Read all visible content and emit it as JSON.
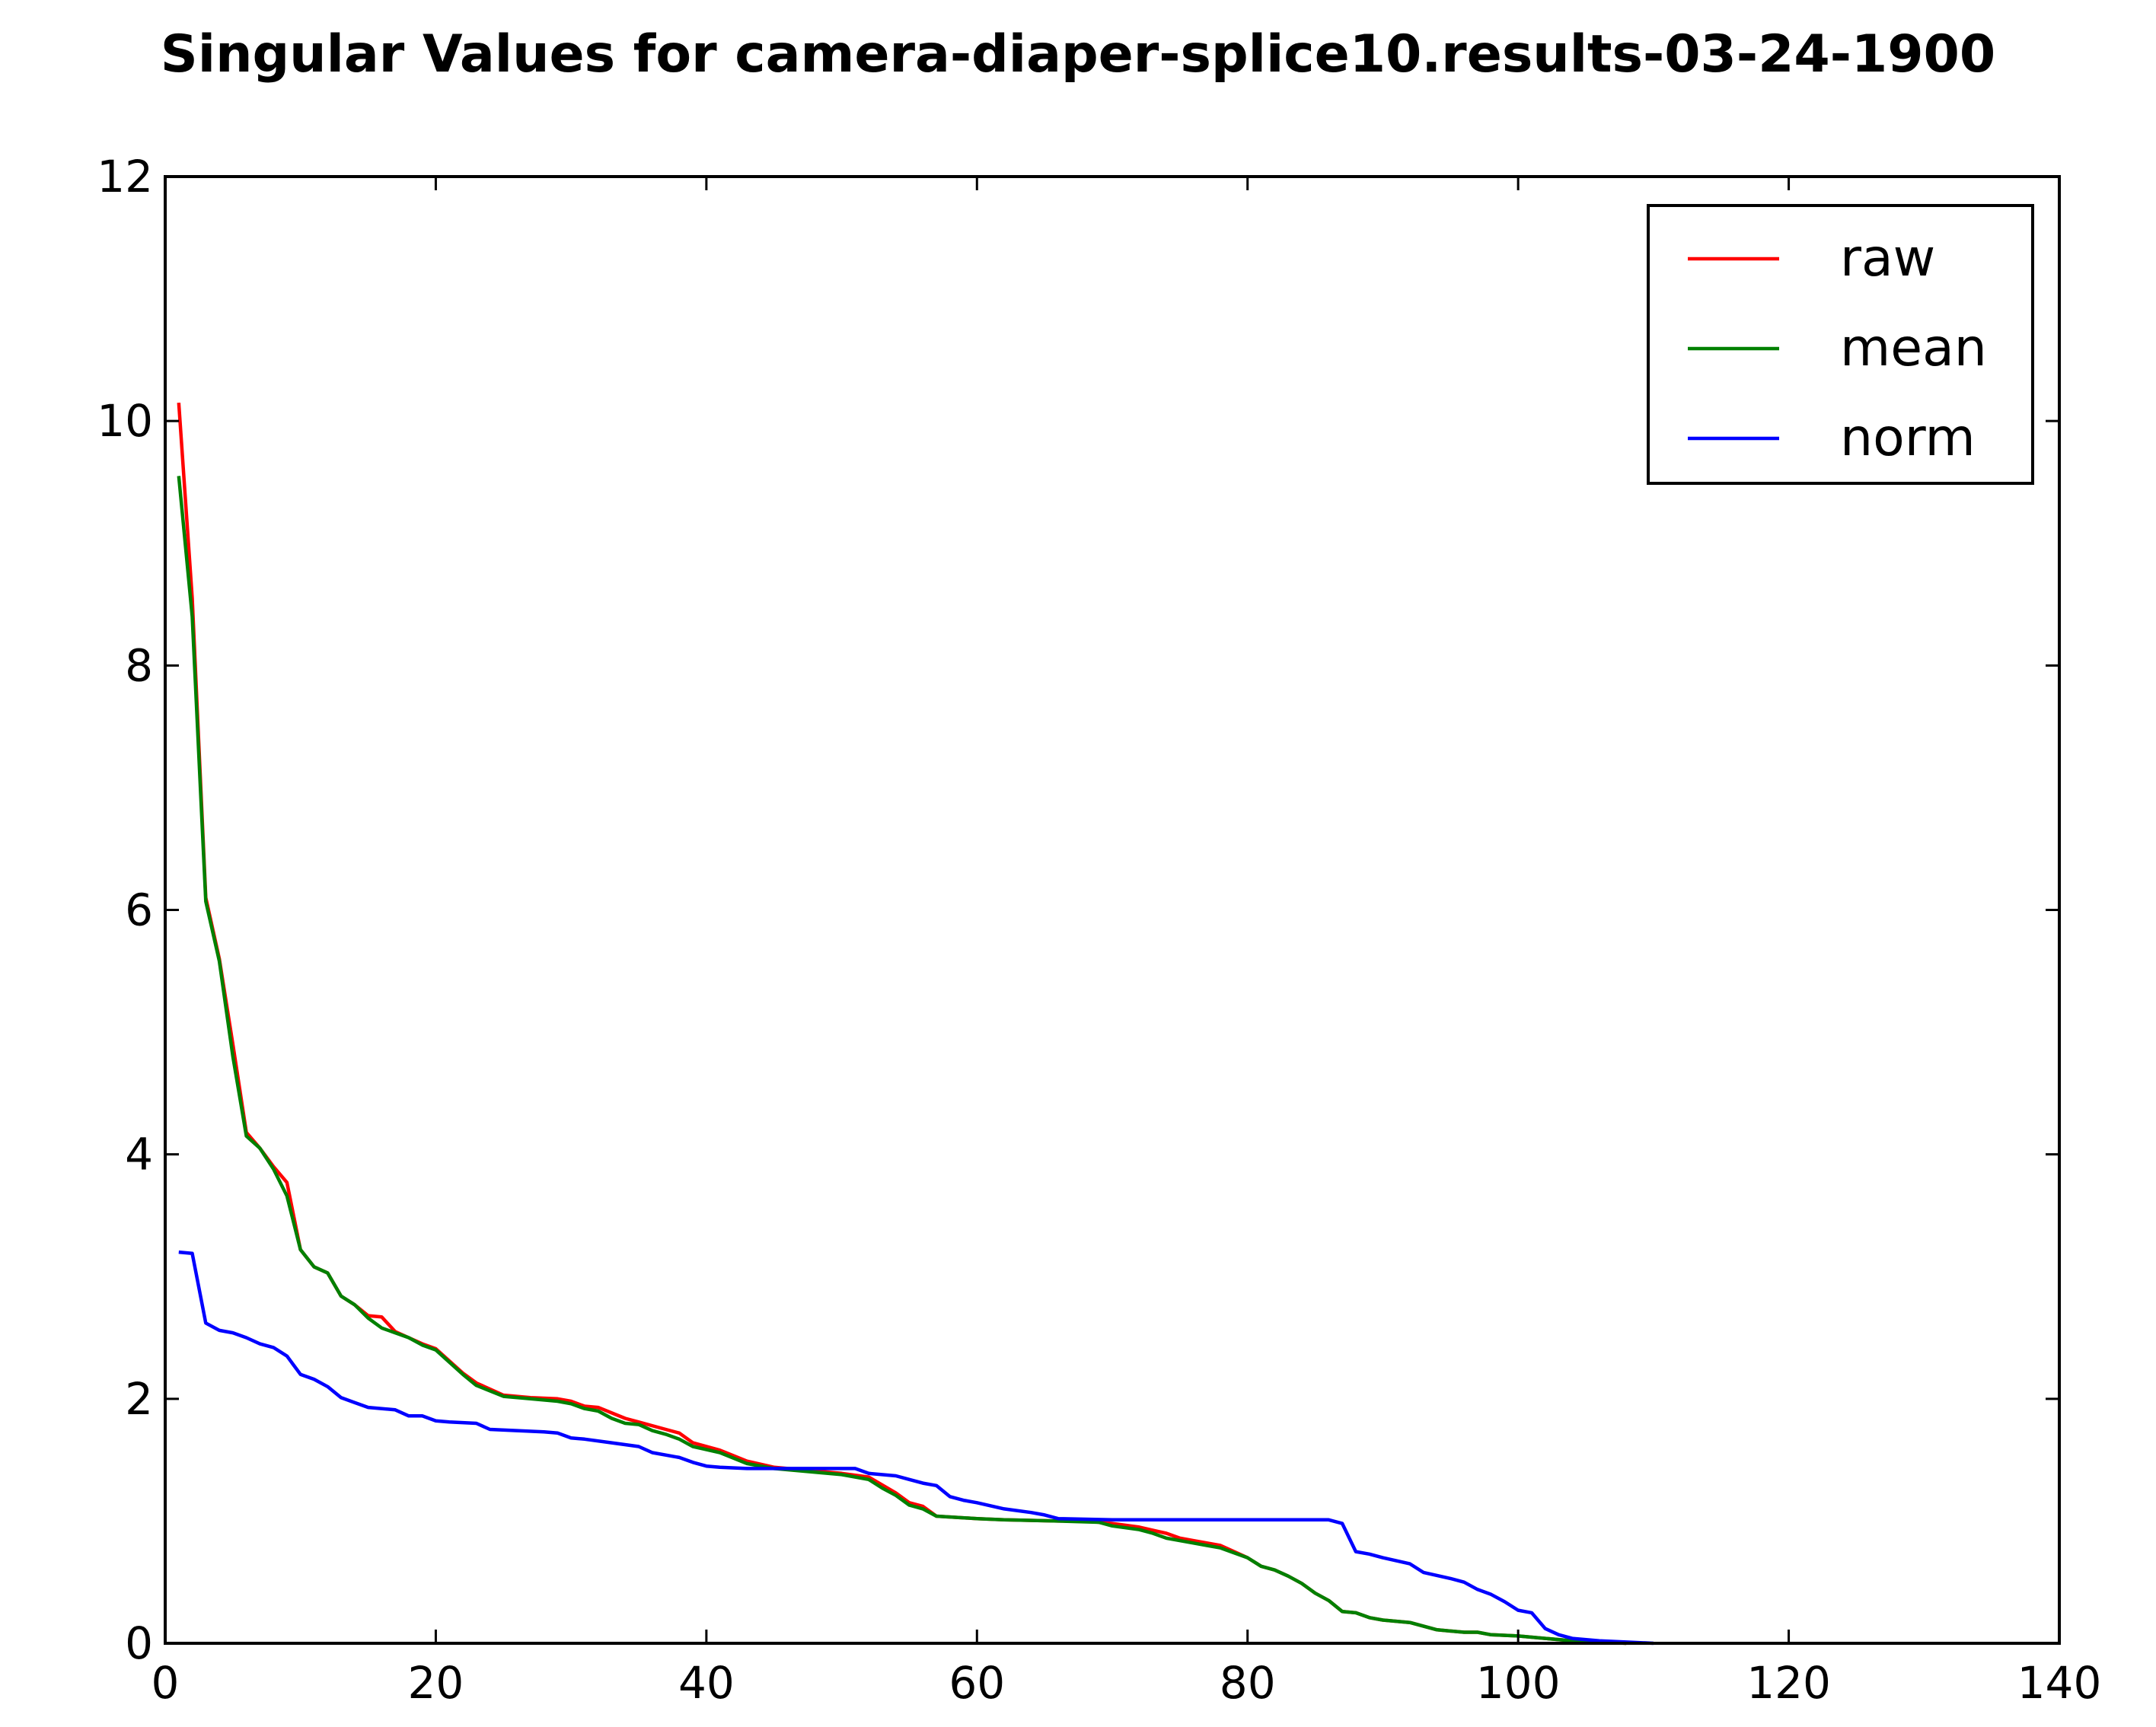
{
  "chart_data": {
    "type": "line",
    "title": "Singular Values for camera-diaper-splice10.results-03-24-1900",
    "xlabel": "",
    "ylabel": "",
    "xlim": [
      0,
      140
    ],
    "ylim": [
      0,
      12
    ],
    "xticks": [
      0,
      20,
      40,
      60,
      80,
      100,
      120,
      140
    ],
    "yticks": [
      0,
      2,
      4,
      6,
      8,
      10,
      12
    ],
    "grid": false,
    "legend": {
      "position": "top-right",
      "entries": [
        "raw",
        "mean",
        "norm"
      ]
    },
    "series": [
      {
        "name": "raw",
        "color": "#ff0000",
        "points": [
          [
            1,
            10.15
          ],
          [
            2,
            8.55
          ],
          [
            3,
            6.1
          ],
          [
            4,
            5.6
          ],
          [
            5,
            4.9
          ],
          [
            6,
            4.18
          ],
          [
            7,
            4.05
          ],
          [
            8,
            3.9
          ],
          [
            9,
            3.77
          ],
          [
            10,
            3.22
          ],
          [
            11,
            3.08
          ],
          [
            12,
            3.03
          ],
          [
            13,
            2.84
          ],
          [
            14,
            2.77
          ],
          [
            15,
            2.68
          ],
          [
            16,
            2.67
          ],
          [
            17,
            2.55
          ],
          [
            18,
            2.5
          ],
          [
            19,
            2.45
          ],
          [
            20,
            2.41
          ],
          [
            22,
            2.21
          ],
          [
            23,
            2.13
          ],
          [
            25,
            2.03
          ],
          [
            27,
            2.01
          ],
          [
            29,
            2.0
          ],
          [
            30,
            1.98
          ],
          [
            31,
            1.94
          ],
          [
            32,
            1.93
          ],
          [
            34,
            1.84
          ],
          [
            35,
            1.81
          ],
          [
            37,
            1.75
          ],
          [
            38,
            1.72
          ],
          [
            39,
            1.64
          ],
          [
            41,
            1.58
          ],
          [
            43,
            1.49
          ],
          [
            45,
            1.44
          ],
          [
            50,
            1.39
          ],
          [
            52,
            1.36
          ],
          [
            54,
            1.23
          ],
          [
            55,
            1.15
          ],
          [
            56,
            1.12
          ],
          [
            57,
            1.04
          ],
          [
            60,
            1.02
          ],
          [
            62,
            1.01
          ],
          [
            66,
            1.0
          ],
          [
            68,
            1.0
          ],
          [
            70,
            0.98
          ],
          [
            72,
            0.95
          ],
          [
            74,
            0.9
          ],
          [
            75,
            0.86
          ],
          [
            76,
            0.84
          ],
          [
            78,
            0.8
          ],
          [
            80,
            0.7
          ],
          [
            81,
            0.63
          ],
          [
            82,
            0.6
          ],
          [
            83,
            0.55
          ],
          [
            84,
            0.49
          ],
          [
            85,
            0.41
          ],
          [
            86,
            0.35
          ],
          [
            87,
            0.26
          ],
          [
            88,
            0.25
          ],
          [
            89,
            0.21
          ],
          [
            90,
            0.19
          ],
          [
            92,
            0.17
          ],
          [
            94,
            0.11
          ],
          [
            96,
            0.09
          ],
          [
            97,
            0.09
          ],
          [
            98,
            0.07
          ],
          [
            100,
            0.06
          ],
          [
            102,
            0.04
          ],
          [
            104,
            0.02
          ],
          [
            106,
            0.01
          ],
          [
            108,
            0.0
          ]
        ]
      },
      {
        "name": "mean",
        "color": "#008000",
        "points": [
          [
            1,
            9.55
          ],
          [
            2,
            8.4
          ],
          [
            3,
            6.07
          ],
          [
            4,
            5.58
          ],
          [
            5,
            4.8
          ],
          [
            6,
            4.15
          ],
          [
            7,
            4.05
          ],
          [
            8,
            3.88
          ],
          [
            9,
            3.66
          ],
          [
            10,
            3.22
          ],
          [
            11,
            3.08
          ],
          [
            12,
            3.03
          ],
          [
            13,
            2.84
          ],
          [
            14,
            2.77
          ],
          [
            15,
            2.66
          ],
          [
            16,
            2.58
          ],
          [
            17,
            2.54
          ],
          [
            18,
            2.5
          ],
          [
            19,
            2.44
          ],
          [
            20,
            2.4
          ],
          [
            22,
            2.2
          ],
          [
            23,
            2.11
          ],
          [
            25,
            2.02
          ],
          [
            27,
            2.0
          ],
          [
            29,
            1.98
          ],
          [
            30,
            1.96
          ],
          [
            31,
            1.92
          ],
          [
            32,
            1.9
          ],
          [
            33,
            1.84
          ],
          [
            34,
            1.8
          ],
          [
            35,
            1.79
          ],
          [
            36,
            1.74
          ],
          [
            37,
            1.71
          ],
          [
            38,
            1.67
          ],
          [
            39,
            1.61
          ],
          [
            41,
            1.56
          ],
          [
            43,
            1.47
          ],
          [
            45,
            1.43
          ],
          [
            50,
            1.38
          ],
          [
            52,
            1.34
          ],
          [
            53,
            1.27
          ],
          [
            54,
            1.21
          ],
          [
            55,
            1.13
          ],
          [
            56,
            1.1
          ],
          [
            57,
            1.04
          ],
          [
            60,
            1.02
          ],
          [
            62,
            1.01
          ],
          [
            66,
            1.0
          ],
          [
            69,
            0.99
          ],
          [
            70,
            0.96
          ],
          [
            72,
            0.93
          ],
          [
            73,
            0.9
          ],
          [
            74,
            0.86
          ],
          [
            76,
            0.82
          ],
          [
            77,
            0.8
          ],
          [
            78,
            0.78
          ],
          [
            80,
            0.7
          ],
          [
            81,
            0.63
          ],
          [
            82,
            0.6
          ],
          [
            83,
            0.55
          ],
          [
            84,
            0.49
          ],
          [
            85,
            0.41
          ],
          [
            86,
            0.35
          ],
          [
            87,
            0.26
          ],
          [
            88,
            0.25
          ],
          [
            89,
            0.21
          ],
          [
            90,
            0.19
          ],
          [
            92,
            0.17
          ],
          [
            94,
            0.11
          ],
          [
            96,
            0.09
          ],
          [
            97,
            0.09
          ],
          [
            98,
            0.07
          ],
          [
            100,
            0.06
          ],
          [
            102,
            0.04
          ],
          [
            104,
            0.02
          ],
          [
            106,
            0.01
          ],
          [
            108,
            0.0
          ]
        ]
      },
      {
        "name": "norm",
        "color": "#0000ff",
        "points": [
          [
            1,
            3.2
          ],
          [
            2,
            3.19
          ],
          [
            3,
            2.62
          ],
          [
            4,
            2.56
          ],
          [
            5,
            2.54
          ],
          [
            6,
            2.5
          ],
          [
            7,
            2.45
          ],
          [
            8,
            2.42
          ],
          [
            9,
            2.35
          ],
          [
            10,
            2.2
          ],
          [
            11,
            2.16
          ],
          [
            12,
            2.1
          ],
          [
            13,
            2.01
          ],
          [
            14,
            1.97
          ],
          [
            15,
            1.93
          ],
          [
            17,
            1.91
          ],
          [
            18,
            1.86
          ],
          [
            19,
            1.86
          ],
          [
            20,
            1.82
          ],
          [
            21,
            1.81
          ],
          [
            23,
            1.8
          ],
          [
            24,
            1.75
          ],
          [
            26,
            1.74
          ],
          [
            28,
            1.73
          ],
          [
            29,
            1.72
          ],
          [
            30,
            1.68
          ],
          [
            31,
            1.67
          ],
          [
            33,
            1.64
          ],
          [
            35,
            1.61
          ],
          [
            36,
            1.56
          ],
          [
            38,
            1.52
          ],
          [
            39,
            1.48
          ],
          [
            40,
            1.45
          ],
          [
            41,
            1.44
          ],
          [
            43,
            1.43
          ],
          [
            45,
            1.43
          ],
          [
            50,
            1.43
          ],
          [
            51,
            1.43
          ],
          [
            52,
            1.39
          ],
          [
            54,
            1.37
          ],
          [
            55,
            1.34
          ],
          [
            56,
            1.31
          ],
          [
            57,
            1.29
          ],
          [
            58,
            1.2
          ],
          [
            59,
            1.17
          ],
          [
            60,
            1.15
          ],
          [
            62,
            1.1
          ],
          [
            64,
            1.07
          ],
          [
            65,
            1.05
          ],
          [
            66,
            1.02
          ],
          [
            70,
            1.01
          ],
          [
            80,
            1.01
          ],
          [
            86,
            1.01
          ],
          [
            87,
            0.98
          ],
          [
            88,
            0.75
          ],
          [
            89,
            0.73
          ],
          [
            90,
            0.7
          ],
          [
            92,
            0.65
          ],
          [
            93,
            0.58
          ],
          [
            95,
            0.53
          ],
          [
            96,
            0.5
          ],
          [
            97,
            0.44
          ],
          [
            98,
            0.4
          ],
          [
            99,
            0.34
          ],
          [
            100,
            0.27
          ],
          [
            101,
            0.25
          ],
          [
            102,
            0.12
          ],
          [
            103,
            0.07
          ],
          [
            104,
            0.04
          ],
          [
            106,
            0.02
          ],
          [
            108,
            0.01
          ],
          [
            110,
            0.0
          ]
        ]
      }
    ]
  }
}
